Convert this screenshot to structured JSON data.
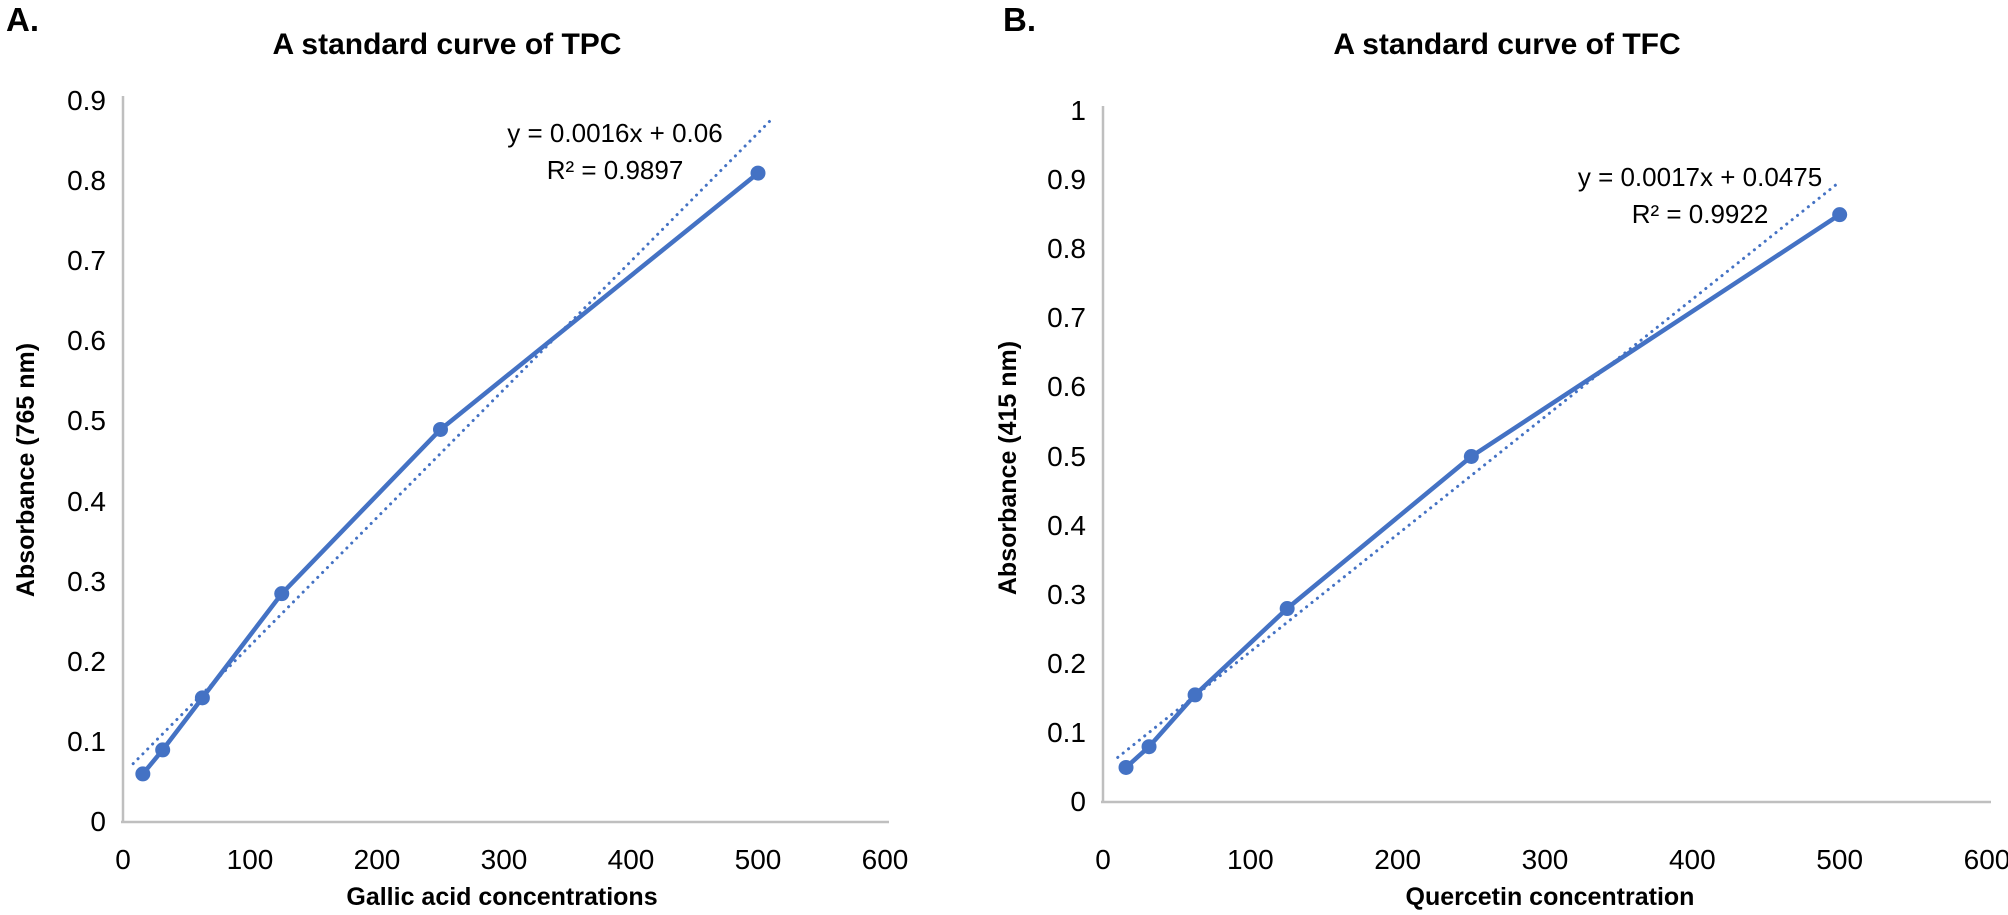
{
  "figure_background": "#ffffff",
  "chart_data": [
    {
      "type": "line",
      "panel_label": "A.",
      "title": "A standard curve of TPC",
      "xlabel": "Gallic acid concentrations",
      "ylabel": "Absorbance (765 nm)",
      "x": [
        15.625,
        31.25,
        62.5,
        125,
        250,
        500
      ],
      "y": [
        0.06,
        0.09,
        0.155,
        0.285,
        0.49,
        0.81
      ],
      "trendline": {
        "equation": "y = 0.0016x + 0.06",
        "r2": "R² = 0.9897",
        "slope": 0.0016,
        "intercept": 0.06,
        "x_start": 8,
        "x_end": 512,
        "style": "dotted"
      },
      "xlim": [
        0,
        600
      ],
      "ylim": [
        0,
        0.9
      ],
      "x_ticks": [
        0,
        100,
        200,
        300,
        400,
        500,
        600
      ],
      "y_ticks": [
        0,
        0.1,
        0.2,
        0.3,
        0.4,
        0.5,
        0.6,
        0.7,
        0.8,
        0.9
      ],
      "grid": false,
      "legend": "none",
      "line_color": "#4472C4",
      "marker": "circle",
      "axis_color": "#BFBFBF",
      "text_color": "#000000"
    },
    {
      "type": "line",
      "panel_label": "B.",
      "title": "A standard curve of TFC",
      "xlabel": "Quercetin concentration",
      "ylabel": "Absorbance (415 nm)",
      "x": [
        15.625,
        31.25,
        62.5,
        125,
        250,
        500
      ],
      "y": [
        0.05,
        0.08,
        0.155,
        0.28,
        0.5,
        0.85
      ],
      "trendline": {
        "equation": "y = 0.0017x + 0.0475",
        "r2": "R² = 0.9922",
        "slope": 0.0017,
        "intercept": 0.0475,
        "x_start": 10,
        "x_end": 500,
        "style": "dotted"
      },
      "xlim": [
        0,
        600
      ],
      "ylim": [
        0,
        1
      ],
      "x_ticks": [
        0,
        100,
        200,
        300,
        400,
        500,
        600
      ],
      "y_ticks": [
        0,
        0.1,
        0.2,
        0.3,
        0.4,
        0.5,
        0.6,
        0.7,
        0.8,
        0.9,
        1
      ],
      "grid": false,
      "legend": "none",
      "line_color": "#4472C4",
      "marker": "circle",
      "axis_color": "#BFBFBF",
      "text_color": "#000000"
    }
  ]
}
